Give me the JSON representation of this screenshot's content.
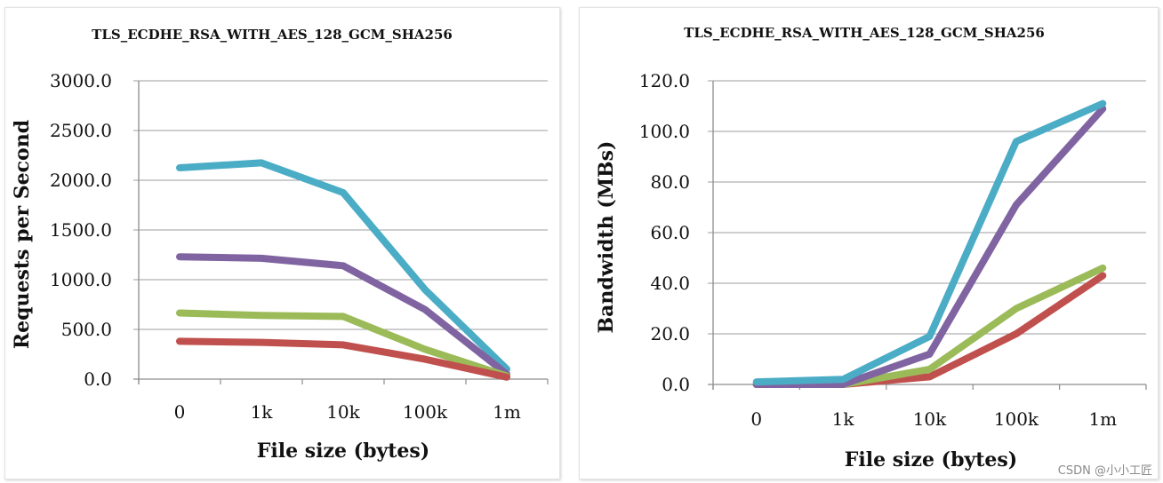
{
  "chart_data": [
    {
      "type": "line",
      "title": "TLS_ECDHE_RSA_WITH_AES_128_GCM_SHA256",
      "xlabel": "File size (bytes)",
      "ylabel": "Requests per Second",
      "categories": [
        "0",
        "1k",
        "10k",
        "100k",
        "1m"
      ],
      "ylim": [
        0,
        3000
      ],
      "yticks": [
        "0.0",
        "500.0",
        "1000.0",
        "1500.0",
        "2000.0",
        "2500.0",
        "3000.0"
      ],
      "grid": true,
      "series": [
        {
          "color": "#4bacc6",
          "values": [
            2125,
            2175,
            1875,
            900,
            100
          ]
        },
        {
          "color": "#8064a2",
          "values": [
            1230,
            1215,
            1140,
            700,
            50
          ]
        },
        {
          "color": "#9bbb59",
          "values": [
            665,
            640,
            630,
            300,
            30
          ]
        },
        {
          "color": "#c0504d",
          "values": [
            380,
            370,
            345,
            200,
            20
          ]
        }
      ]
    },
    {
      "type": "line",
      "title": "TLS_ECDHE_RSA_WITH_AES_128_GCM_SHA256",
      "xlabel": "File size (bytes)",
      "ylabel": "Bandwidth (MBs)",
      "categories": [
        "0",
        "1k",
        "10k",
        "100k",
        "1m"
      ],
      "ylim": [
        0,
        120
      ],
      "yticks": [
        "0.0",
        "20.0",
        "40.0",
        "60.0",
        "80.0",
        "100.0",
        "120.0"
      ],
      "grid": true,
      "series": [
        {
          "color": "#c0504d",
          "values": [
            0,
            0,
            3,
            20,
            43
          ]
        },
        {
          "color": "#9bbb59",
          "values": [
            0,
            0,
            6,
            30,
            46
          ]
        },
        {
          "color": "#8064a2",
          "values": [
            0,
            0,
            12,
            71,
            109
          ]
        },
        {
          "color": "#4bacc6",
          "values": [
            1,
            2,
            19,
            96,
            111
          ]
        }
      ]
    }
  ],
  "watermark": "CSDN @小小工匠"
}
